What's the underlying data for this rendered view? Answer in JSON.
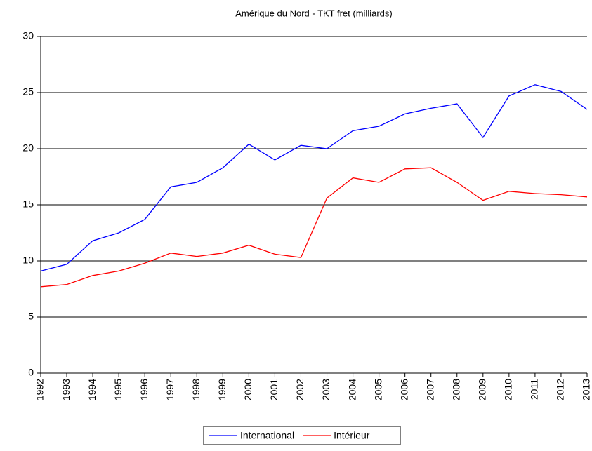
{
  "chart_data": {
    "type": "line",
    "title": "Amérique du Nord - TKT fret (milliards)",
    "x": [
      1992,
      1993,
      1994,
      1995,
      1996,
      1997,
      1998,
      1999,
      2000,
      2001,
      2002,
      2003,
      2004,
      2005,
      2006,
      2007,
      2008,
      2009,
      2010,
      2011,
      2012,
      2013
    ],
    "xlim": [
      1992,
      2013
    ],
    "series": [
      {
        "name": "International",
        "color": "#0000ff",
        "values": [
          9.1,
          9.7,
          11.8,
          12.5,
          13.7,
          16.6,
          17.0,
          18.3,
          20.4,
          19.0,
          20.3,
          20.0,
          21.6,
          22.0,
          23.1,
          23.6,
          24.0,
          21.0,
          24.7,
          25.7,
          25.1,
          23.5
        ]
      },
      {
        "name": "Intérieur",
        "color": "#ff0000",
        "values": [
          7.7,
          7.9,
          8.7,
          9.1,
          9.8,
          10.7,
          10.4,
          10.7,
          11.4,
          10.6,
          10.3,
          15.6,
          17.4,
          17.0,
          18.2,
          18.3,
          17.0,
          15.4,
          16.2,
          16.0,
          15.9,
          15.7
        ]
      }
    ],
    "ylim": [
      0,
      30
    ],
    "yticks": [
      0,
      5,
      10,
      15,
      20,
      25,
      30
    ],
    "grid": true,
    "legend": "bottom"
  }
}
